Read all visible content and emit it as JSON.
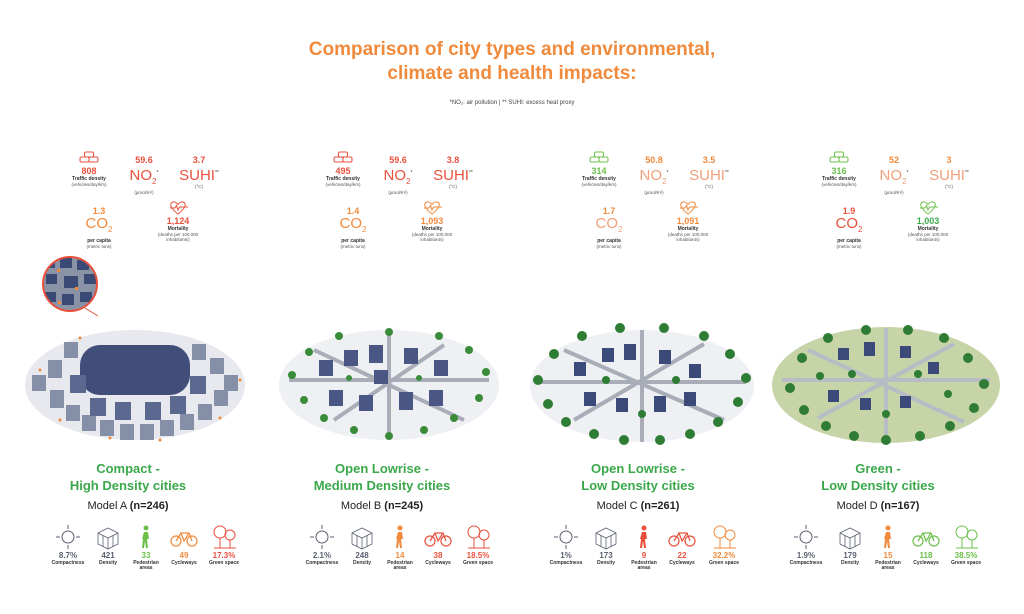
{
  "title_line1": "Comparison of city types and environmental,",
  "title_line2": "climate and health impacts:",
  "subtitle": "*NO₂: air pollution  |  ** SUHI: excess heat proxy",
  "labels": {
    "traffic": "Traffic density",
    "traffic_unit": "(vehicles/day/km)",
    "no2_unit": "(µmol/m²)",
    "suhi_unit": "(°C)",
    "co2_per_capita": "per capita",
    "co2_unit": "(metric tons)",
    "mortality": "Mortality",
    "mortality_unit": "(deaths per 100,000 inhabitants)",
    "no2_symbol": "NO",
    "no2_sub": "2",
    "co2_symbol": "CO",
    "co2_sub": "2",
    "suhi_symbol": "SUHI",
    "star1": "*",
    "star2": "**",
    "compactness": "Compactness",
    "density": "Density",
    "pedestrian": "Pedestrian areas",
    "cycleways": "Cycleways",
    "green_space": "Green space"
  },
  "colors": {
    "title": "#f08a3c",
    "high": "#e8503c",
    "mid": "#f08a3c",
    "low": "#6cc04a",
    "category": "#3aa84a"
  },
  "cities": [
    {
      "name_line1": "Compact -",
      "name_line2": "High Density cities",
      "model": "Model A",
      "n": "(n=246)",
      "traffic": "808",
      "no2": "59.6",
      "suhi": "3.7",
      "co2": "1.3",
      "mortality": "1,124",
      "compactness": "8.7%",
      "density": "421",
      "pedestrian": "33",
      "cycleways": "49",
      "green": "17.3%"
    },
    {
      "name_line1": "Open Lowrise -",
      "name_line2": "Medium Density cities",
      "model": "Model B",
      "n": "(n=245)",
      "traffic": "495",
      "no2": "59.6",
      "suhi": "3.8",
      "co2": "1.4",
      "mortality": "1,093",
      "compactness": "2.1%",
      "density": "248",
      "pedestrian": "14",
      "cycleways": "38",
      "green": "18.5%"
    },
    {
      "name_line1": "Open Lowrise -",
      "name_line2": "Low Density cities",
      "model": "Model C",
      "n": "(n=261)",
      "traffic": "314",
      "no2": "50.8",
      "suhi": "3.5",
      "co2": "1.7",
      "mortality": "1,091",
      "compactness": "1%",
      "density": "173",
      "pedestrian": "9",
      "cycleways": "22",
      "green": "32.2%"
    },
    {
      "name_line1": "Green -",
      "name_line2": "Low Density cities",
      "model": "Model D",
      "n": "(n=167)",
      "traffic": "316",
      "no2": "52",
      "suhi": "3",
      "co2": "1.9",
      "mortality": "1,003",
      "compactness": "1.9%",
      "density": "179",
      "pedestrian": "15",
      "cycleways": "118",
      "green": "38.5%"
    }
  ]
}
